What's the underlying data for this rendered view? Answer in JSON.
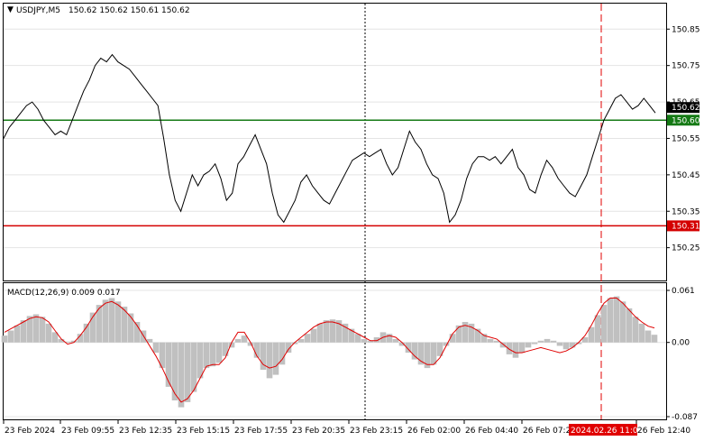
{
  "header": {
    "symbol": "USDJPY,M5",
    "ohlc": "150.62 150.62 150.61 150.62"
  },
  "indicator": {
    "label": "MACD(12,26,9) 0.009 0.017"
  },
  "colors": {
    "price_line": "#000000",
    "support_line": "#d40000",
    "resistance_line": "#157a15",
    "macd_hist": "#c0c0c0",
    "macd_signal": "#e00000",
    "marker": "#e00000",
    "grid": "#e4e4e4"
  },
  "chart_data": [
    {
      "type": "line",
      "title": "USDJPY,M5",
      "ylim": [
        150.16,
        150.92
      ],
      "y_ticks": [
        "150.85",
        "150.75",
        "150.65",
        "150.55",
        "150.45",
        "150.35",
        "150.25"
      ],
      "current_price": "150.62",
      "levels": [
        {
          "value": 150.6,
          "label": "150.60",
          "color": "#157a15"
        },
        {
          "value": 150.31,
          "label": "150.31",
          "color": "#d40000"
        }
      ],
      "series": [
        {
          "values": [
            150.55,
            150.58,
            150.6,
            150.62,
            150.64,
            150.65,
            150.63,
            150.6,
            150.58,
            150.56,
            150.57,
            150.56,
            150.6,
            150.64,
            150.68,
            150.71,
            150.75,
            150.77,
            150.76,
            150.78,
            150.76,
            150.75,
            150.74,
            150.72,
            150.7,
            150.68,
            150.66,
            150.64,
            150.55,
            150.45,
            150.38,
            150.35,
            150.4,
            150.45,
            150.42,
            150.45,
            150.46,
            150.48,
            150.44,
            150.38,
            150.4,
            150.48,
            150.5,
            150.53,
            150.56,
            150.52,
            150.48,
            150.4,
            150.34,
            150.32,
            150.35,
            150.38,
            150.43,
            150.45,
            150.42,
            150.4,
            150.38,
            150.37,
            150.4,
            150.43,
            150.46,
            150.49,
            150.5,
            150.51,
            150.5,
            150.51,
            150.52,
            150.48,
            150.45,
            150.47,
            150.52,
            150.57,
            150.54,
            150.52,
            150.48,
            150.45,
            150.44,
            150.4,
            150.32,
            150.34,
            150.38,
            150.44,
            150.48,
            150.5,
            150.5,
            150.49,
            150.5,
            150.48,
            150.5,
            150.52,
            150.47,
            150.45,
            150.41,
            150.4,
            150.45,
            150.49,
            150.47,
            150.44,
            150.42,
            150.4,
            150.39,
            150.42,
            150.45,
            150.5,
            150.55,
            150.6,
            150.63,
            150.66,
            150.67,
            150.65,
            150.63,
            150.64,
            150.66,
            150.64,
            150.62
          ]
        }
      ],
      "x_ticks": [
        "23 Feb 2024",
        "23 Feb 09:55",
        "23 Feb 12:35",
        "23 Feb 15:15",
        "23 Feb 17:55",
        "23 Feb 20:35",
        "23 Feb 23:15",
        "26 Feb 02:00",
        "26 Feb 04:40",
        "26 Feb 07:20",
        "2024.02.26 11:00",
        "26 Feb 12:40"
      ],
      "marker_label": "2024.02.26 11:00"
    },
    {
      "type": "bar",
      "title": "MACD(12,26,9)",
      "ylim": [
        -0.087,
        0.061
      ],
      "y_ticks": [
        "0.061",
        "0.00",
        "-0.087"
      ],
      "histogram": [
        0.008,
        0.014,
        0.02,
        0.026,
        0.031,
        0.033,
        0.03,
        0.022,
        0.012,
        0.004,
        0.001,
        0.002,
        0.01,
        0.022,
        0.035,
        0.044,
        0.05,
        0.052,
        0.048,
        0.042,
        0.034,
        0.024,
        0.014,
        0.004,
        -0.012,
        -0.03,
        -0.052,
        -0.068,
        -0.076,
        -0.07,
        -0.058,
        -0.042,
        -0.03,
        -0.028,
        -0.024,
        -0.016,
        -0.006,
        0.004,
        0.008,
        -0.004,
        -0.018,
        -0.032,
        -0.042,
        -0.038,
        -0.026,
        -0.012,
        -0.002,
        0.004,
        0.01,
        0.016,
        0.022,
        0.026,
        0.027,
        0.026,
        0.022,
        0.016,
        0.01,
        0.004,
        0.002,
        0.006,
        0.012,
        0.01,
        0.004,
        -0.004,
        -0.012,
        -0.02,
        -0.026,
        -0.03,
        -0.026,
        -0.016,
        -0.004,
        0.01,
        0.02,
        0.024,
        0.022,
        0.016,
        0.01,
        0.004,
        0.002,
        -0.006,
        -0.014,
        -0.018,
        -0.012,
        -0.006,
        -0.002,
        0.002,
        0.004,
        0.002,
        -0.004,
        -0.008,
        -0.006,
        -0.002,
        0.006,
        0.018,
        0.032,
        0.044,
        0.052,
        0.054,
        0.048,
        0.04,
        0.03,
        0.022,
        0.014,
        0.009
      ],
      "signal": [
        0.012,
        0.016,
        0.02,
        0.024,
        0.028,
        0.03,
        0.029,
        0.024,
        0.014,
        0.004,
        -0.002,
        0.0,
        0.008,
        0.018,
        0.03,
        0.04,
        0.046,
        0.048,
        0.044,
        0.038,
        0.03,
        0.02,
        0.008,
        -0.004,
        -0.016,
        -0.03,
        -0.046,
        -0.06,
        -0.07,
        -0.066,
        -0.056,
        -0.042,
        -0.028,
        -0.026,
        -0.026,
        -0.018,
        0.0,
        0.012,
        0.012,
        0.0,
        -0.016,
        -0.026,
        -0.03,
        -0.028,
        -0.02,
        -0.008,
        0.0,
        0.006,
        0.012,
        0.018,
        0.022,
        0.024,
        0.024,
        0.022,
        0.018,
        0.014,
        0.01,
        0.006,
        0.002,
        0.002,
        0.006,
        0.008,
        0.006,
        0.0,
        -0.008,
        -0.016,
        -0.022,
        -0.026,
        -0.026,
        -0.018,
        -0.004,
        0.01,
        0.018,
        0.02,
        0.018,
        0.014,
        0.008,
        0.006,
        0.004,
        -0.002,
        -0.008,
        -0.012,
        -0.012,
        -0.01,
        -0.008,
        -0.006,
        -0.008,
        -0.01,
        -0.012,
        -0.01,
        -0.006,
        0.0,
        0.008,
        0.02,
        0.034,
        0.046,
        0.052,
        0.052,
        0.046,
        0.038,
        0.03,
        0.024,
        0.019,
        0.017
      ]
    }
  ]
}
